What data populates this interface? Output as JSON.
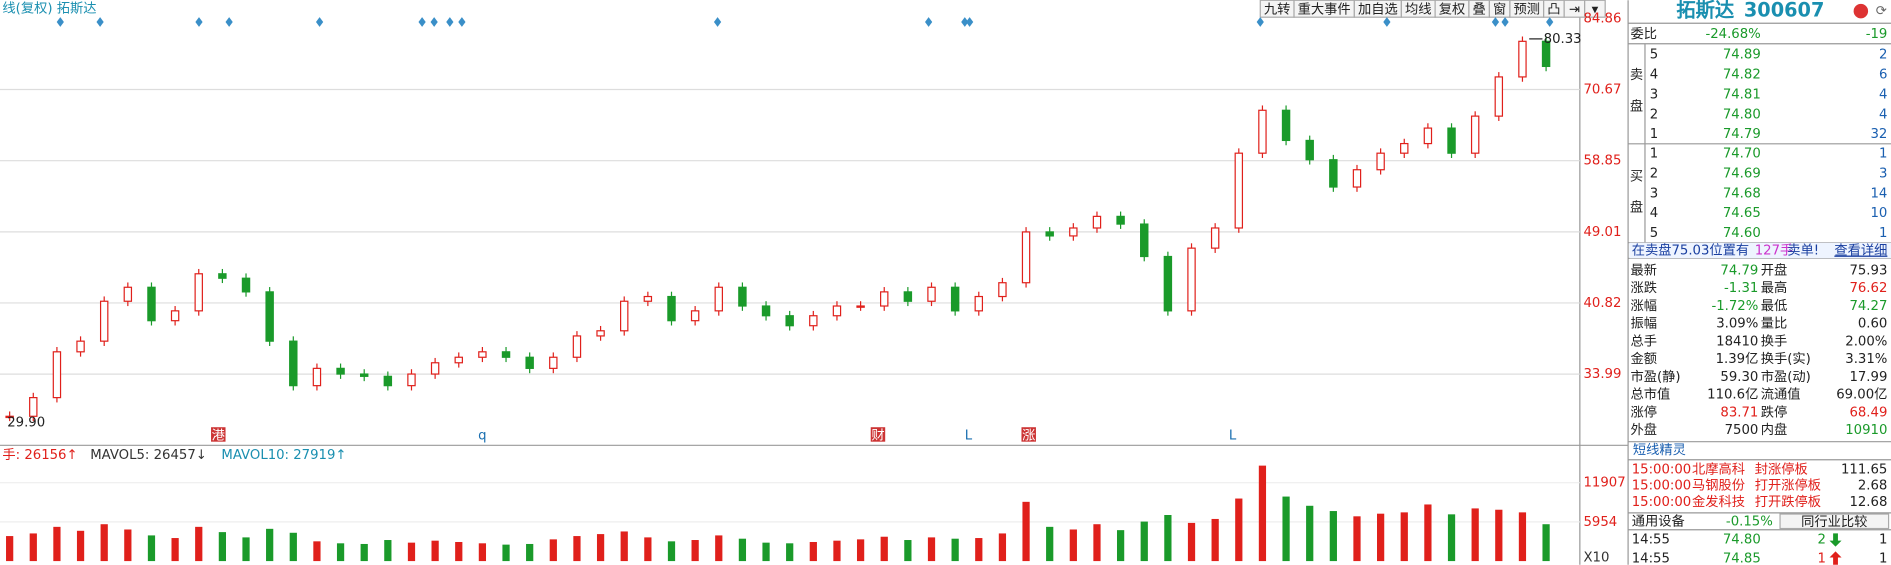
{
  "toolbar": {
    "title": "线(复权) 拓斯达",
    "buttons": [
      "九转",
      "重大事件",
      "加自选",
      "均线",
      "复权",
      "叠",
      "窗",
      "预测",
      "凸",
      "⇥",
      "▾"
    ]
  },
  "chart": {
    "price_axis": [
      84.86,
      70.67,
      58.85,
      49.01,
      40.82,
      33.99
    ],
    "high_label": "80.33",
    "low_label": "29.90",
    "event_markers": [
      "港",
      "q",
      "财",
      "L",
      "涨",
      "L"
    ],
    "closes": [
      30.5,
      32,
      36,
      37,
      41,
      42.5,
      39,
      40,
      44,
      43.5,
      42,
      37,
      33,
      34.5,
      34,
      33.8,
      33,
      34,
      35,
      35.5,
      36,
      35.5,
      34.5,
      35.5,
      37.5,
      38,
      41,
      41.5,
      39,
      40,
      42.5,
      40.5,
      39.5,
      38.5,
      39.5,
      40.5,
      40.5,
      42,
      41,
      42.5,
      40,
      41.5,
      43,
      49,
      48.5,
      49.5,
      51,
      50,
      46,
      40,
      47,
      49.5,
      60,
      67,
      62,
      59,
      55,
      57.5,
      60,
      61.5,
      64,
      60,
      66,
      73,
      80,
      75
    ],
    "volume_header": [
      "手: 26156↑",
      "MAVOL5: 26457↓",
      "MAVOL10: 27919↑"
    ],
    "volume_axis": [
      11907,
      5954
    ],
    "volume_unit": "X10",
    "volumes": [
      3800,
      4200,
      5200,
      4600,
      5600,
      4800,
      3900,
      3500,
      5200,
      4400,
      3600,
      4900,
      4300,
      3000,
      2700,
      2600,
      3200,
      2800,
      3100,
      2900,
      2700,
      2500,
      2600,
      3300,
      3800,
      4100,
      4500,
      3600,
      3000,
      3200,
      3900,
      3400,
      2800,
      2700,
      2900,
      3100,
      3300,
      3700,
      3200,
      3600,
      3400,
      3500,
      4200,
      9000,
      5200,
      4800,
      5600,
      4700,
      6000,
      7000,
      5800,
      6400,
      9500,
      14500,
      9800,
      8400,
      7600,
      6800,
      7200,
      7400,
      8600,
      7100,
      8000,
      7800,
      7400,
      5600
    ]
  },
  "quote": {
    "name": "拓斯达",
    "code": "300607",
    "weibi": [
      "委比",
      "-24.68%",
      "-19"
    ],
    "sell_label": [
      "卖",
      "盘"
    ],
    "buy_label": [
      "买",
      "盘"
    ],
    "sell": [
      [
        "5",
        "74.89",
        "2"
      ],
      [
        "4",
        "74.82",
        "6"
      ],
      [
        "3",
        "74.81",
        "4"
      ],
      [
        "2",
        "74.80",
        "4"
      ],
      [
        "1",
        "74.79",
        "32"
      ]
    ],
    "buy": [
      [
        "1",
        "74.70",
        "1"
      ],
      [
        "2",
        "74.69",
        "3"
      ],
      [
        "3",
        "74.68",
        "14"
      ],
      [
        "4",
        "74.65",
        "10"
      ],
      [
        "5",
        "74.60",
        "1"
      ]
    ],
    "notice": [
      "在卖盘75.03位置有",
      "127手",
      "卖单!",
      "查看详细"
    ],
    "stats": [
      [
        "最新",
        "74.79",
        "开盘",
        "75.93"
      ],
      [
        "涨跌",
        "-1.31",
        "最高",
        "76.62"
      ],
      [
        "涨幅",
        "-1.72%",
        "最低",
        "74.27"
      ],
      [
        "振幅",
        "3.09%",
        "量比",
        "0.60"
      ],
      [
        "总手",
        "18410",
        "换手",
        "2.00%"
      ],
      [
        "金额",
        "1.39亿",
        "换手(实)",
        "3.31%"
      ],
      [
        "市盈(静)",
        "59.30",
        "市盈(动)",
        "17.99"
      ],
      [
        "总市值",
        "110.6亿",
        "流通值",
        "69.00亿"
      ],
      [
        "涨停",
        "83.71",
        "跌停",
        "68.49"
      ],
      [
        "外盘",
        "7500",
        "内盘",
        "10910"
      ]
    ],
    "alerts_title": "短线精灵",
    "alerts": [
      [
        "15:00:00",
        "北摩高科",
        "封涨停板",
        "111.65"
      ],
      [
        "15:00:00",
        "马钢股份",
        "打开涨停板",
        "2.68"
      ],
      [
        "15:00:00",
        "金发科技",
        "打开跌停板",
        "12.68"
      ]
    ],
    "sector": [
      "通用设备",
      "-0.15%",
      "同行业比较"
    ],
    "ticks": [
      [
        "14:55",
        "74.80",
        "2",
        "1"
      ],
      [
        "14:55",
        "74.85",
        "1",
        "1"
      ]
    ]
  }
}
